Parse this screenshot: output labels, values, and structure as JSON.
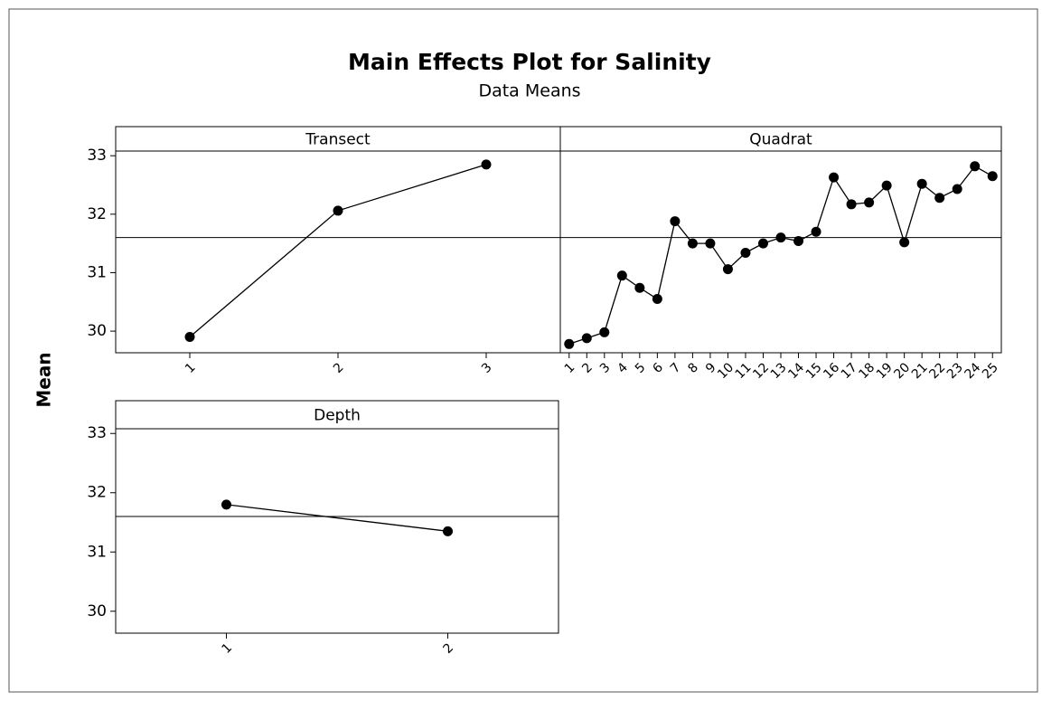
{
  "title": "Main Effects Plot for Salinity",
  "subtitle": "Data Means",
  "y_label": "Mean",
  "chart_data": [
    {
      "type": "line",
      "title": "Transect",
      "categories": [
        "1",
        "2",
        "3"
      ],
      "values": [
        29.9,
        32.06,
        32.85
      ],
      "color": "#000000",
      "ylim": [
        29.63,
        33.08
      ],
      "yticks": [
        30,
        31,
        32,
        33
      ],
      "reference_line": 31.6
    },
    {
      "type": "line",
      "title": "Quadrat",
      "categories": [
        "1",
        "2",
        "3",
        "4",
        "5",
        "6",
        "7",
        "8",
        "9",
        "10",
        "11",
        "12",
        "13",
        "14",
        "15",
        "16",
        "17",
        "18",
        "19",
        "20",
        "21",
        "22",
        "23",
        "24",
        "25"
      ],
      "values": [
        29.78,
        29.88,
        29.98,
        30.95,
        30.74,
        30.55,
        31.88,
        31.5,
        31.5,
        31.06,
        31.34,
        31.5,
        31.6,
        31.54,
        31.7,
        32.63,
        32.17,
        32.2,
        32.49,
        31.52,
        32.52,
        32.28,
        32.43,
        32.82,
        32.65
      ],
      "color": "#000000",
      "ylim": [
        29.63,
        33.08
      ],
      "reference_line": 31.6
    },
    {
      "type": "line",
      "title": "Depth",
      "categories": [
        "1",
        "2"
      ],
      "values": [
        31.8,
        31.35
      ],
      "color": "#000000",
      "ylim": [
        29.63,
        33.08
      ],
      "yticks": [
        30,
        31,
        32,
        33
      ],
      "reference_line": 31.6
    }
  ]
}
